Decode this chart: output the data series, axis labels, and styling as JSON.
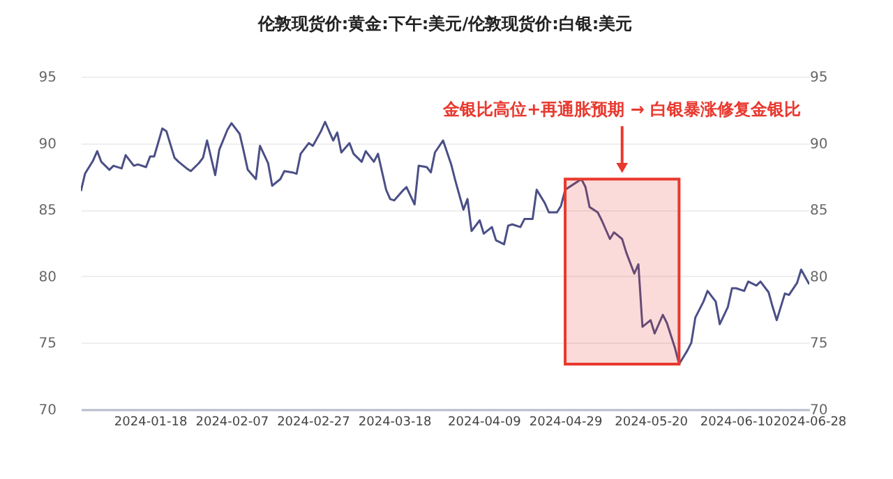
{
  "chart_data": {
    "type": "line",
    "title": "伦敦现货价:黄金:下午:美元/伦敦现货价:白银:美元",
    "x": [
      "2024-01-01",
      "2024-01-02",
      "2024-01-04",
      "2024-01-05",
      "2024-01-06",
      "2024-01-08",
      "2024-01-09",
      "2024-01-11",
      "2024-01-12",
      "2024-01-14",
      "2024-01-15",
      "2024-01-17",
      "2024-01-18",
      "2024-01-19",
      "2024-01-21",
      "2024-01-22",
      "2024-01-24",
      "2024-01-25",
      "2024-01-27",
      "2024-01-28",
      "2024-01-30",
      "2024-01-31",
      "2024-02-01",
      "2024-02-03",
      "2024-02-04",
      "2024-02-06",
      "2024-02-07",
      "2024-02-09",
      "2024-02-10",
      "2024-02-11",
      "2024-02-13",
      "2024-02-14",
      "2024-02-16",
      "2024-02-17",
      "2024-02-19",
      "2024-02-20",
      "2024-02-22",
      "2024-02-23",
      "2024-02-24",
      "2024-02-26",
      "2024-02-27",
      "2024-02-29",
      "2024-03-01",
      "2024-03-03",
      "2024-03-04",
      "2024-03-05",
      "2024-03-07",
      "2024-03-08",
      "2024-03-10",
      "2024-03-11",
      "2024-03-13",
      "2024-03-14",
      "2024-03-16",
      "2024-03-17",
      "2024-03-18",
      "2024-03-20",
      "2024-03-21",
      "2024-03-23",
      "2024-03-24",
      "2024-03-26",
      "2024-03-27",
      "2024-03-28",
      "2024-03-30",
      "2024-04-01",
      "2024-04-02",
      "2024-04-04",
      "2024-04-05",
      "2024-04-06",
      "2024-04-08",
      "2024-04-09",
      "2024-04-11",
      "2024-04-12",
      "2024-04-14",
      "2024-04-15",
      "2024-04-16",
      "2024-04-18",
      "2024-04-19",
      "2024-04-21",
      "2024-04-22",
      "2024-04-24",
      "2024-04-25",
      "2024-04-27",
      "2024-04-28",
      "2024-04-29",
      "2024-05-01",
      "2024-05-03",
      "2024-05-04",
      "2024-05-05",
      "2024-05-07",
      "2024-05-08",
      "2024-05-10",
      "2024-05-11",
      "2024-05-13",
      "2024-05-14",
      "2024-05-16",
      "2024-05-17",
      "2024-05-18",
      "2024-05-20",
      "2024-05-21",
      "2024-05-23",
      "2024-05-24",
      "2024-05-26",
      "2024-05-27",
      "2024-05-29",
      "2024-05-30",
      "2024-05-31",
      "2024-06-02",
      "2024-06-03",
      "2024-06-05",
      "2024-06-06",
      "2024-06-08",
      "2024-06-09",
      "2024-06-10",
      "2024-06-12",
      "2024-06-13",
      "2024-06-15",
      "2024-06-16",
      "2024-06-18",
      "2024-06-19",
      "2024-06-20",
      "2024-06-22",
      "2024-06-23",
      "2024-06-25",
      "2024-06-26",
      "2024-06-28"
    ],
    "series": [
      {
        "color": "#4b4f86",
        "values": [
          86.4,
          87.7,
          88.7,
          89.4,
          88.6,
          88.0,
          88.3,
          88.1,
          89.1,
          88.3,
          88.4,
          88.2,
          89.0,
          89.0,
          91.1,
          90.9,
          88.9,
          88.6,
          88.1,
          87.9,
          88.5,
          88.9,
          90.2,
          87.6,
          89.5,
          91.0,
          91.5,
          90.7,
          89.4,
          88.0,
          87.3,
          89.8,
          88.5,
          86.8,
          87.3,
          87.9,
          87.8,
          87.7,
          89.2,
          90.0,
          89.8,
          90.9,
          91.6,
          90.2,
          90.8,
          89.3,
          90.0,
          89.2,
          88.6,
          89.4,
          88.6,
          89.2,
          86.5,
          85.8,
          85.7,
          86.4,
          86.7,
          85.4,
          88.3,
          88.2,
          87.8,
          89.3,
          90.2,
          88.4,
          87.2,
          85.0,
          85.8,
          83.4,
          84.2,
          83.2,
          83.7,
          82.7,
          82.4,
          83.8,
          83.9,
          83.7,
          84.3,
          84.3,
          86.5,
          85.5,
          84.8,
          84.8,
          85.3,
          86.5,
          86.9,
          87.3,
          86.7,
          85.2,
          84.8,
          84.2,
          82.8,
          83.3,
          82.8,
          81.8,
          80.2,
          80.9,
          76.2,
          76.7,
          75.7,
          77.1,
          76.5,
          74.6,
          73.4,
          74.4,
          75.0,
          76.9,
          78.1,
          78.9,
          78.1,
          76.4,
          77.7,
          79.1,
          79.1,
          78.9,
          79.6,
          79.3,
          79.6,
          78.8,
          77.7,
          76.7,
          78.7,
          78.6,
          79.5,
          80.5,
          79.4
        ]
      }
    ],
    "xlim": [
      "2024-01-01",
      "2024-06-28"
    ],
    "xticks": [
      "2024-01-18",
      "2024-02-07",
      "2024-02-27",
      "2024-03-18",
      "2024-04-09",
      "2024-04-29",
      "2024-05-20",
      "2024-06-10",
      "2024-06-28"
    ],
    "ylim": [
      70,
      95
    ],
    "yticks": [
      70,
      75,
      80,
      85,
      90,
      95
    ],
    "y2lim": [
      70,
      95
    ],
    "y2ticks": [
      70,
      75,
      80,
      85,
      90,
      95
    ],
    "grid": "y",
    "bands": [
      {
        "axis": "x",
        "from": "2024-04-29",
        "to": "2024-05-27",
        "label": "金银比高位+再通胀预期 → 白银暴涨修复金银比",
        "color": "#e8392f"
      }
    ]
  }
}
